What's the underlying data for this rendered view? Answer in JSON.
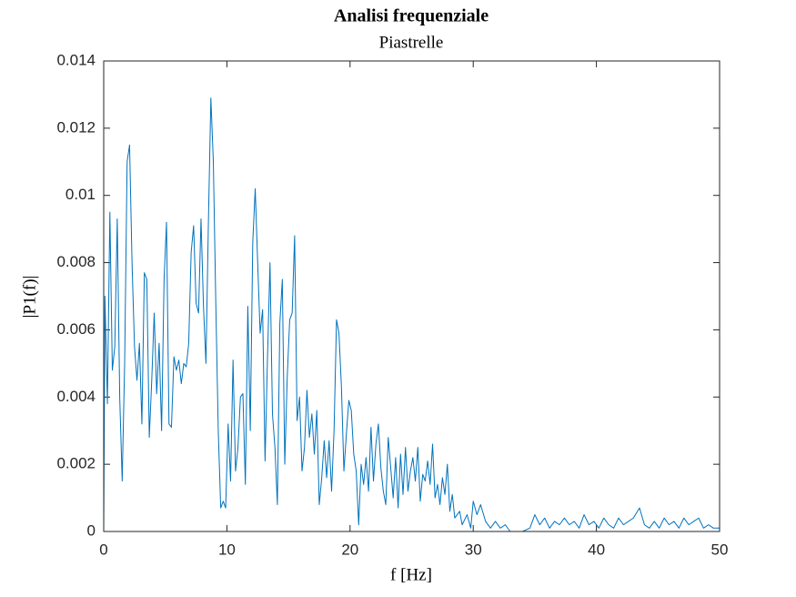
{
  "chart_data": {
    "type": "line",
    "title": "Analisi frequenziale",
    "subtitle": "Piastrelle",
    "xlabel": "f [Hz]",
    "ylabel": "|P1(f)|",
    "xlim": [
      0,
      50
    ],
    "xticks": [
      0,
      10,
      20,
      30,
      40,
      50
    ],
    "ylim": [
      0,
      0.014
    ],
    "yticks": [
      0,
      0.002,
      0.004,
      0.006,
      0.008,
      0.01,
      0.012,
      0.014
    ],
    "box": true,
    "series": [
      {
        "color": "#0072bd",
        "x": [
          0,
          0.1,
          0.3,
          0.5,
          0.7,
          0.9,
          1.1,
          1.3,
          1.5,
          1.7,
          1.9,
          2.1,
          2.3,
          2.5,
          2.7,
          2.9,
          3.1,
          3.3,
          3.5,
          3.7,
          3.9,
          4.1,
          4.3,
          4.5,
          4.7,
          4.9,
          5.1,
          5.3,
          5.5,
          5.7,
          5.9,
          6.1,
          6.3,
          6.5,
          6.7,
          6.9,
          7.1,
          7.3,
          7.5,
          7.7,
          7.9,
          8.1,
          8.3,
          8.5,
          8.7,
          8.9,
          9.1,
          9.3,
          9.5,
          9.7,
          9.9,
          10.1,
          10.3,
          10.5,
          10.7,
          10.9,
          11.1,
          11.3,
          11.5,
          11.7,
          11.9,
          12.1,
          12.3,
          12.5,
          12.7,
          12.9,
          13.1,
          13.3,
          13.5,
          13.7,
          13.9,
          14.1,
          14.3,
          14.5,
          14.7,
          14.9,
          15.1,
          15.3,
          15.5,
          15.7,
          15.9,
          16.1,
          16.3,
          16.5,
          16.7,
          16.9,
          17.1,
          17.3,
          17.5,
          17.7,
          17.9,
          18.1,
          18.3,
          18.5,
          18.7,
          18.9,
          19.1,
          19.3,
          19.5,
          19.7,
          19.9,
          20.1,
          20.3,
          20.5,
          20.7,
          20.9,
          21.1,
          21.3,
          21.5,
          21.7,
          21.9,
          22.1,
          22.3,
          22.5,
          22.7,
          22.9,
          23.1,
          23.3,
          23.5,
          23.7,
          23.9,
          24.1,
          24.3,
          24.5,
          24.7,
          24.9,
          25.1,
          25.3,
          25.5,
          25.7,
          25.9,
          26.1,
          26.3,
          26.5,
          26.7,
          26.9,
          27.1,
          27.3,
          27.5,
          27.7,
          27.9,
          28.1,
          28.3,
          28.5,
          28.9,
          29.1,
          29.5,
          29.8,
          30.0,
          30.3,
          30.6,
          31.0,
          31.4,
          31.8,
          32.2,
          32.6,
          33.0,
          34.0,
          34.6,
          35.0,
          35.4,
          35.8,
          36.2,
          36.6,
          37.0,
          37.4,
          37.8,
          38.2,
          38.6,
          39.0,
          39.4,
          39.8,
          40.2,
          40.6,
          41.0,
          41.4,
          41.8,
          42.2,
          42.6,
          43.0,
          43.5,
          43.9,
          44.3,
          44.7,
          45.1,
          45.5,
          45.9,
          46.3,
          46.7,
          47.1,
          47.5,
          47.9,
          48.3,
          48.7,
          49.1,
          49.5,
          50
        ],
        "values": [
          0,
          0.007,
          0.0038,
          0.0095,
          0.0048,
          0.0055,
          0.0093,
          0.004,
          0.0015,
          0.005,
          0.011,
          0.0115,
          0.008,
          0.0055,
          0.0045,
          0.0056,
          0.0032,
          0.0077,
          0.0075,
          0.0028,
          0.0045,
          0.0065,
          0.0041,
          0.0056,
          0.003,
          0.0075,
          0.0092,
          0.0032,
          0.0031,
          0.0052,
          0.0048,
          0.0051,
          0.0044,
          0.005,
          0.0049,
          0.0056,
          0.0083,
          0.0091,
          0.0068,
          0.0065,
          0.0093,
          0.0067,
          0.005,
          0.0092,
          0.0129,
          0.011,
          0.0068,
          0.003,
          0.0007,
          0.0009,
          0.0007,
          0.0032,
          0.0015,
          0.0051,
          0.0018,
          0.0025,
          0.004,
          0.0041,
          0.0014,
          0.0067,
          0.003,
          0.0086,
          0.0102,
          0.008,
          0.0059,
          0.0066,
          0.0021,
          0.0052,
          0.008,
          0.0035,
          0.0025,
          0.0008,
          0.0062,
          0.0075,
          0.002,
          0.0046,
          0.0063,
          0.0065,
          0.0088,
          0.0033,
          0.004,
          0.0018,
          0.0025,
          0.0042,
          0.0028,
          0.0035,
          0.0023,
          0.0036,
          0.0008,
          0.0016,
          0.0027,
          0.0016,
          0.0027,
          0.0012,
          0.003,
          0.0063,
          0.0059,
          0.0043,
          0.0018,
          0.0029,
          0.0039,
          0.0036,
          0.0023,
          0.0018,
          0.0002,
          0.002,
          0.0014,
          0.0022,
          0.0012,
          0.0031,
          0.0015,
          0.0026,
          0.0032,
          0.0019,
          0.0012,
          0.0008,
          0.0028,
          0.0019,
          0.001,
          0.0022,
          0.0007,
          0.0023,
          0.0011,
          0.0025,
          0.0012,
          0.0018,
          0.0022,
          0.0015,
          0.0025,
          0.0009,
          0.0017,
          0.0015,
          0.0021,
          0.0014,
          0.0026,
          0.001,
          0.0014,
          0.0008,
          0.0016,
          0.0011,
          0.002,
          0.0006,
          0.0011,
          0.0004,
          0.0006,
          0.0002,
          0.0005,
          0.0001,
          0.0009,
          0.0005,
          0.0008,
          0.0003,
          0.0001,
          0.0003,
          0.0001,
          0.0002,
          0,
          0,
          0.0001,
          0.0005,
          0.0002,
          0.0004,
          0.0001,
          0.0003,
          0.0002,
          0.0004,
          0.0002,
          0.0003,
          0.0001,
          0.0005,
          0.0002,
          0.0003,
          0.0001,
          0.0004,
          0.0002,
          0.0001,
          0.0004,
          0.0002,
          0.0003,
          0.0004,
          0.0007,
          0.0002,
          0.0001,
          0.0003,
          0.0001,
          0.0004,
          0.0002,
          0.0003,
          0.0001,
          0.0004,
          0.0002,
          0.0003,
          0.0004,
          0.0001,
          0.0002,
          0.0001,
          0.0001
        ]
      }
    ]
  }
}
